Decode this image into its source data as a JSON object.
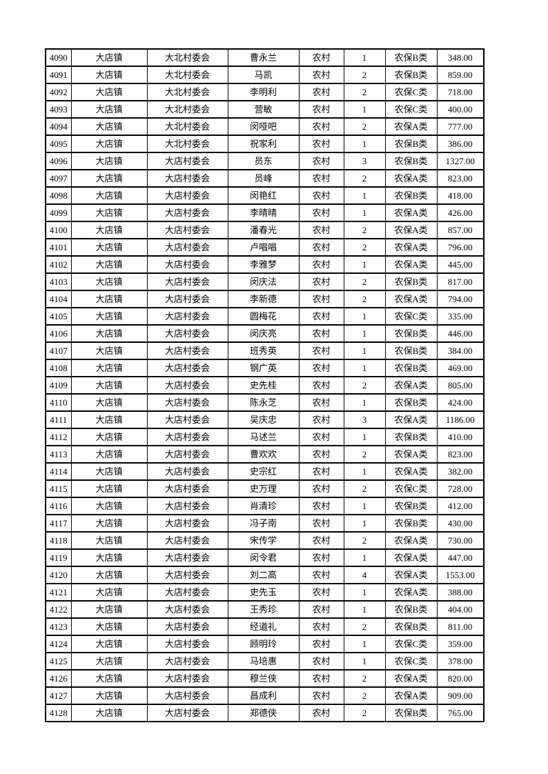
{
  "page": {
    "background_color": "#ffffff",
    "text_color": "#000000",
    "border_color": "#000000"
  },
  "table": {
    "rows": [
      [
        "4090",
        "大店镇",
        "大北村委会",
        "曹永兰",
        "农村",
        "1",
        "农保B类",
        "348.00"
      ],
      [
        "4091",
        "大店镇",
        "大北村委会",
        "马凯",
        "农村",
        "2",
        "农保B类",
        "859.00"
      ],
      [
        "4092",
        "大店镇",
        "大北村委会",
        "李明利",
        "农村",
        "2",
        "农保C类",
        "718.00"
      ],
      [
        "4093",
        "大店镇",
        "大北村委会",
        "营敏",
        "农村",
        "1",
        "农保C类",
        "400.00"
      ],
      [
        "4094",
        "大店镇",
        "大北村委会",
        "闵哑吧",
        "农村",
        "2",
        "农保A类",
        "777.00"
      ],
      [
        "4095",
        "大店镇",
        "大北村委会",
        "祝家利",
        "农村",
        "1",
        "农保B类",
        "386.00"
      ],
      [
        "4096",
        "大店镇",
        "大店村委会",
        "员东",
        "农村",
        "3",
        "农保B类",
        "1327.00"
      ],
      [
        "4097",
        "大店镇",
        "大店村委会",
        "员峰",
        "农村",
        "2",
        "农保A类",
        "823.00"
      ],
      [
        "4098",
        "大店镇",
        "大店村委会",
        "闵艳红",
        "农村",
        "1",
        "农保B类",
        "418.00"
      ],
      [
        "4099",
        "大店镇",
        "大店村委会",
        "李晴晴",
        "农村",
        "1",
        "农保A类",
        "426.00"
      ],
      [
        "4100",
        "大店镇",
        "大店村委会",
        "潘春光",
        "农村",
        "2",
        "农保A类",
        "857.00"
      ],
      [
        "4101",
        "大店镇",
        "大店村委会",
        "卢唱唱",
        "农村",
        "2",
        "农保A类",
        "796.00"
      ],
      [
        "4102",
        "大店镇",
        "大店村委会",
        "李雅梦",
        "农村",
        "1",
        "农保A类",
        "445.00"
      ],
      [
        "4103",
        "大店镇",
        "大店村委会",
        "闵庆法",
        "农村",
        "2",
        "农保B类",
        "817.00"
      ],
      [
        "4104",
        "大店镇",
        "大店村委会",
        "李新德",
        "农村",
        "2",
        "农保A类",
        "794.00"
      ],
      [
        "4105",
        "大店镇",
        "大店村委会",
        "圆梅花",
        "农村",
        "1",
        "农保C类",
        "335.00"
      ],
      [
        "4106",
        "大店镇",
        "大店村委会",
        "闵庆亮",
        "农村",
        "1",
        "农保B类",
        "446.00"
      ],
      [
        "4107",
        "大店镇",
        "大店村委会",
        "班秀英",
        "农村",
        "1",
        "农保B类",
        "384.00"
      ],
      [
        "4108",
        "大店镇",
        "大店村委会",
        "钢广英",
        "农村",
        "1",
        "农保B类",
        "469.00"
      ],
      [
        "4109",
        "大店镇",
        "大店村委会",
        "史先桂",
        "农村",
        "2",
        "农保A类",
        "805.00"
      ],
      [
        "4110",
        "大店镇",
        "大店村委会",
        "陈永芝",
        "农村",
        "1",
        "农保B类",
        "424.00"
      ],
      [
        "4111",
        "大店镇",
        "大店村委会",
        "吴庆忠",
        "农村",
        "3",
        "农保A类",
        "1186.00"
      ],
      [
        "4112",
        "大店镇",
        "大店村委会",
        "马述兰",
        "农村",
        "1",
        "农保B类",
        "410.00"
      ],
      [
        "4113",
        "大店镇",
        "大店村委会",
        "曹欢欢",
        "农村",
        "2",
        "农保A类",
        "823.00"
      ],
      [
        "4114",
        "大店镇",
        "大店村委会",
        "史宗红",
        "农村",
        "1",
        "农保A类",
        "382.00"
      ],
      [
        "4115",
        "大店镇",
        "大店村委会",
        "史万理",
        "农村",
        "2",
        "农保C类",
        "728.00"
      ],
      [
        "4116",
        "大店镇",
        "大店村委会",
        "肖清珍",
        "农村",
        "1",
        "农保B类",
        "412.00"
      ],
      [
        "4117",
        "大店镇",
        "大店村委会",
        "冯子南",
        "农村",
        "1",
        "农保B类",
        "430.00"
      ],
      [
        "4118",
        "大店镇",
        "大店村委会",
        "宋传学",
        "农村",
        "2",
        "农保A类",
        "730.00"
      ],
      [
        "4119",
        "大店镇",
        "大店村委会",
        "闵令君",
        "农村",
        "1",
        "农保A类",
        "447.00"
      ],
      [
        "4120",
        "大店镇",
        "大店村委会",
        "刘二高",
        "农村",
        "4",
        "农保A类",
        "1553.00"
      ],
      [
        "4121",
        "大店镇",
        "大店村委会",
        "史先玉",
        "农村",
        "1",
        "农保A类",
        "388.00"
      ],
      [
        "4122",
        "大店镇",
        "大店村委会",
        "王秀珍",
        "农村",
        "1",
        "农保B类",
        "404.00"
      ],
      [
        "4123",
        "大店镇",
        "大店村委会",
        "经道礼",
        "农村",
        "2",
        "农保B类",
        "811.00"
      ],
      [
        "4124",
        "大店镇",
        "大店村委会",
        "顾明玲",
        "农村",
        "1",
        "农保C类",
        "359.00"
      ],
      [
        "4125",
        "大店镇",
        "大店村委会",
        "马培惠",
        "农村",
        "1",
        "农保C类",
        "378.00"
      ],
      [
        "4126",
        "大店镇",
        "大店村委会",
        "穆兰侠",
        "农村",
        "2",
        "农保A类",
        "820.00"
      ],
      [
        "4127",
        "大店镇",
        "大店村委会",
        "昌成利",
        "农村",
        "2",
        "农保A类",
        "909.00"
      ],
      [
        "4128",
        "大店镇",
        "大店村委会",
        "郑德侠",
        "农村",
        "2",
        "农保B类",
        "765.00"
      ]
    ]
  }
}
